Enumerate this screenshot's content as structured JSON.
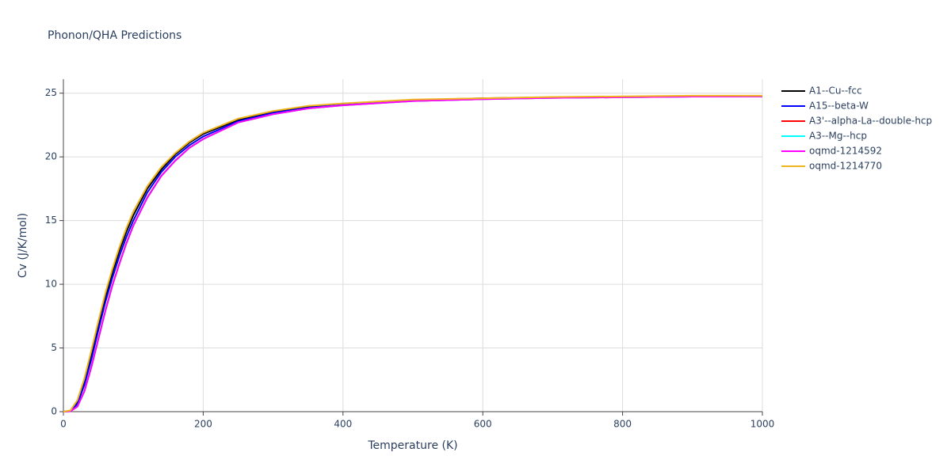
{
  "chart_data": {
    "type": "line",
    "title": "Phonon/QHA Predictions",
    "x_label": "Temperature (K)",
    "y_label": "Cv (J/K/mol)",
    "x": [
      0,
      10,
      20,
      30,
      40,
      50,
      60,
      70,
      80,
      90,
      100,
      120,
      140,
      160,
      180,
      200,
      250,
      300,
      350,
      400,
      500,
      600,
      700,
      800,
      900,
      1000
    ],
    "xlim": [
      0,
      1000
    ],
    "xticks": [
      0,
      200,
      400,
      600,
      800,
      1000
    ],
    "ylim": [
      0,
      26.1
    ],
    "yticks": [
      0,
      5,
      10,
      15,
      20,
      25
    ],
    "grid": true,
    "series": [
      {
        "name": "A1--Cu--fcc",
        "color": "#000000",
        "values": [
          0,
          0.08,
          0.8,
          2.4,
          4.5,
          6.8,
          9.0,
          10.9,
          12.6,
          14.1,
          15.4,
          17.5,
          19.0,
          20.2,
          21.1,
          21.8,
          22.9,
          23.5,
          23.9,
          24.15,
          24.45,
          24.6,
          24.68,
          24.72,
          24.76,
          24.78
        ]
      },
      {
        "name": "A15--beta-W",
        "color": "#0000ff",
        "values": [
          0,
          0.05,
          0.6,
          2.1,
          4.1,
          6.4,
          8.6,
          10.5,
          12.2,
          13.7,
          15.0,
          17.2,
          18.8,
          20.0,
          20.9,
          21.6,
          22.8,
          23.45,
          23.85,
          24.1,
          24.4,
          24.55,
          24.65,
          24.7,
          24.74,
          24.76
        ]
      },
      {
        "name": "A3'--alpha-La--double-hcp",
        "color": "#ff0000",
        "values": [
          0,
          0.03,
          0.4,
          1.6,
          3.5,
          5.7,
          7.9,
          9.9,
          11.6,
          13.2,
          14.6,
          16.8,
          18.5,
          19.7,
          20.7,
          21.4,
          22.7,
          23.35,
          23.8,
          24.05,
          24.38,
          24.53,
          24.63,
          24.68,
          24.73,
          24.75
        ]
      },
      {
        "name": "A3--Mg--hcp",
        "color": "#00ffff",
        "values": [
          0,
          0.03,
          0.4,
          1.6,
          3.5,
          5.7,
          7.9,
          9.9,
          11.6,
          13.2,
          14.6,
          16.8,
          18.5,
          19.7,
          20.7,
          21.4,
          22.7,
          23.35,
          23.8,
          24.05,
          24.38,
          24.53,
          24.63,
          24.68,
          24.73,
          24.75
        ]
      },
      {
        "name": "oqmd-1214592",
        "color": "#ff00ff",
        "values": [
          0,
          0.03,
          0.4,
          1.6,
          3.5,
          5.7,
          7.9,
          9.9,
          11.6,
          13.2,
          14.6,
          16.8,
          18.5,
          19.7,
          20.7,
          21.4,
          22.7,
          23.35,
          23.8,
          24.05,
          24.38,
          24.53,
          24.63,
          24.68,
          24.73,
          24.75
        ]
      },
      {
        "name": "oqmd-1214770",
        "color": "#f0b41e",
        "values": [
          0,
          0.1,
          0.9,
          2.6,
          4.8,
          7.1,
          9.3,
          11.2,
          12.9,
          14.4,
          15.7,
          17.7,
          19.2,
          20.3,
          21.2,
          21.9,
          23.0,
          23.6,
          24.0,
          24.2,
          24.5,
          24.6,
          24.7,
          24.75,
          24.8,
          24.8
        ]
      }
    ]
  }
}
